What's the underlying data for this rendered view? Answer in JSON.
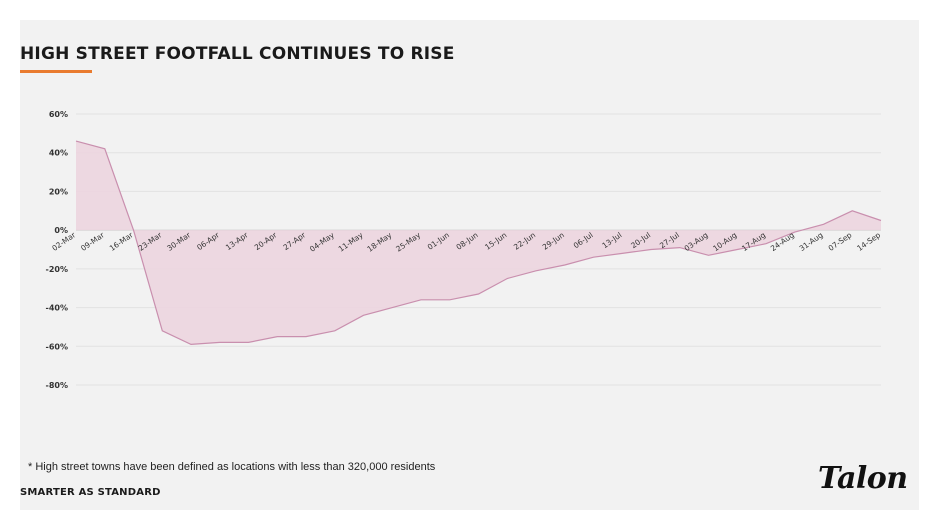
{
  "title": "HIGH STREET FOOTFALL CONTINUES TO RISE",
  "footnote": "* High street towns have been defined as locations with less than 320,000 residents",
  "tagline": "SMARTER AS STANDARD",
  "logo_text": "Talon",
  "colors": {
    "accent": "#e97b2f",
    "area_fill": "#ecd4de",
    "line": "#c98fae"
  },
  "chart_data": {
    "type": "area",
    "title": "HIGH STREET FOOTFALL CONTINUES TO RISE",
    "xlabel": "",
    "ylabel": "",
    "ylim": [
      -80,
      60
    ],
    "yticks": [
      60,
      40,
      20,
      0,
      -20,
      -40,
      -60,
      -80
    ],
    "ytick_labels": [
      "60%",
      "40%",
      "20%",
      "0%",
      "-20%",
      "-40%",
      "-60%",
      "-80%"
    ],
    "grid": true,
    "legend": "none",
    "categories": [
      "02-Mar",
      "09-Mar",
      "16-Mar",
      "23-Mar",
      "30-Mar",
      "06-Apr",
      "13-Apr",
      "20-Apr",
      "27-Apr",
      "04-May",
      "11-May",
      "18-May",
      "25-May",
      "01-Jun",
      "08-Jun",
      "15-Jun",
      "22-Jun",
      "29-Jun",
      "06-Jul",
      "13-Jul",
      "20-Jul",
      "27-Jul",
      "03-Aug",
      "10-Aug",
      "17-Aug",
      "24-Aug",
      "31-Aug",
      "07-Sep",
      "14-Sep"
    ],
    "values": [
      46,
      42,
      0,
      -52,
      -59,
      -58,
      -58,
      -55,
      -55,
      -52,
      -44,
      -40,
      -36,
      -36,
      -33,
      -25,
      -21,
      -18,
      -14,
      -12,
      -10,
      -9,
      -13,
      -10,
      -7,
      -1,
      3,
      10,
      5
    ]
  }
}
